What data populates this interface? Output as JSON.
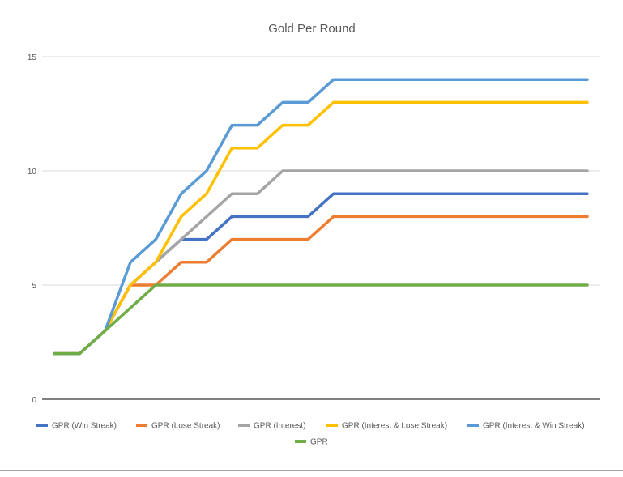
{
  "chart_data": {
    "type": "line",
    "title": "Gold Per Round",
    "xlabel": "",
    "ylabel": "",
    "ylim": [
      0,
      15
    ],
    "yticks": [
      0,
      5,
      10,
      15
    ],
    "x": [
      1,
      2,
      3,
      4,
      5,
      6,
      7,
      8,
      9,
      10,
      11,
      12,
      13,
      14,
      15,
      16,
      17,
      18,
      19,
      20,
      21,
      22
    ],
    "grid": true,
    "legend": "bottom",
    "series": [
      {
        "name": "GPR (Win Streak)",
        "color": "#4472c4",
        "values": [
          2,
          2,
          3,
          5,
          6,
          7,
          7,
          8,
          8,
          8,
          8,
          9,
          9,
          9,
          9,
          9,
          9,
          9,
          9,
          9,
          9,
          9
        ]
      },
      {
        "name": "GPR (Lose Streak)",
        "color": "#ed7d31",
        "values": [
          2,
          2,
          3,
          5,
          5,
          6,
          6,
          7,
          7,
          7,
          7,
          8,
          8,
          8,
          8,
          8,
          8,
          8,
          8,
          8,
          8,
          8
        ]
      },
      {
        "name": "GPR (Interest)",
        "color": "#a5a5a5",
        "values": [
          2,
          2,
          3,
          5,
          6,
          7,
          8,
          9,
          9,
          10,
          10,
          10,
          10,
          10,
          10,
          10,
          10,
          10,
          10,
          10,
          10,
          10
        ]
      },
      {
        "name": "GPR (Interest & Lose Streak)",
        "color": "#ffc000",
        "values": [
          2,
          2,
          3,
          5,
          6,
          8,
          9,
          11,
          11,
          12,
          12,
          13,
          13,
          13,
          13,
          13,
          13,
          13,
          13,
          13,
          13,
          13
        ]
      },
      {
        "name": "GPR (Interest & Win Streak)",
        "color": "#5b9bd5",
        "values": [
          2,
          2,
          3,
          6,
          7,
          9,
          10,
          12,
          12,
          13,
          13,
          14,
          14,
          14,
          14,
          14,
          14,
          14,
          14,
          14,
          14,
          14
        ]
      },
      {
        "name": "GPR",
        "color": "#70ad47",
        "values": [
          2,
          2,
          3,
          4,
          5,
          5,
          5,
          5,
          5,
          5,
          5,
          5,
          5,
          5,
          5,
          5,
          5,
          5,
          5,
          5,
          5,
          5
        ]
      }
    ]
  }
}
